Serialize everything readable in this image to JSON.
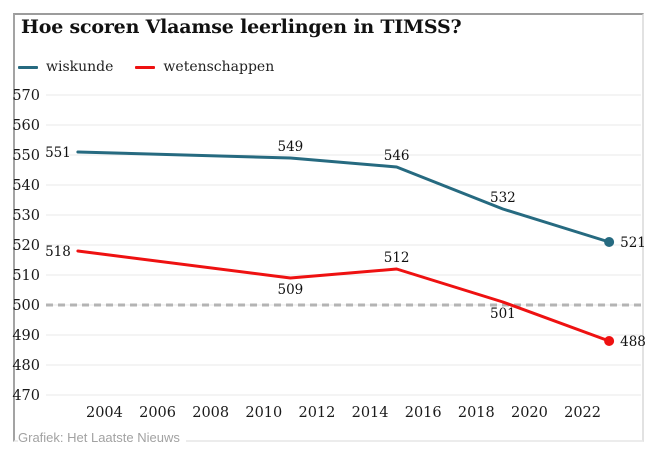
{
  "chart_data": {
    "type": "line",
    "title": "Hoe scoren Vlaamse leerlingen in TIMSS?",
    "x": [
      2003,
      2011,
      2015,
      2019,
      2023
    ],
    "xlim": [
      2001.8,
      2024.2
    ],
    "ylim": [
      470,
      570
    ],
    "y_ticks": [
      470,
      480,
      490,
      500,
      510,
      520,
      530,
      540,
      550,
      560,
      570
    ],
    "x_ticks": [
      2004,
      2006,
      2008,
      2010,
      2012,
      2014,
      2016,
      2018,
      2020,
      2022
    ],
    "grid": "horizontal-only",
    "legend_position": "top-left",
    "series": [
      {
        "name": "wiskunde",
        "color": "#266a80",
        "values": [
          551,
          549,
          546,
          532,
          521
        ],
        "end_marker": true,
        "label_placement": [
          "left",
          "above",
          "above",
          "above",
          "right"
        ]
      },
      {
        "name": "wetenschappen",
        "color": "#ee1111",
        "values": [
          518,
          509,
          512,
          501,
          488
        ],
        "end_marker": true,
        "label_placement": [
          "left",
          "below",
          "above",
          "below",
          "right"
        ]
      }
    ],
    "reference_line": {
      "value": 500,
      "style": "dashed",
      "color": "#b4b4b4"
    },
    "source": "Grafiek: Het Laatste Nieuws"
  },
  "colors": {
    "grid": "#e9e9e9",
    "tick_text": "#1a1a1a",
    "data_label": "#111111"
  }
}
